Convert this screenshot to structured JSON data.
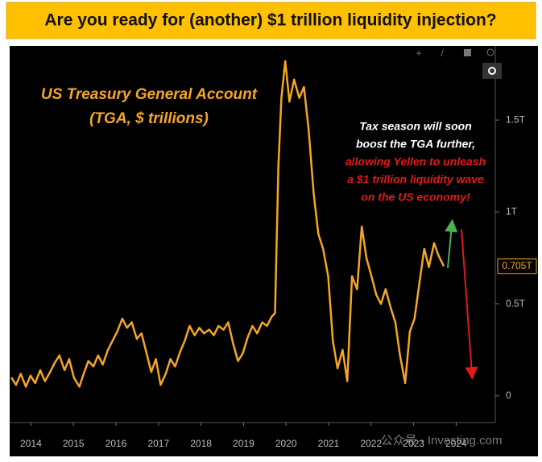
{
  "chart_data": {
    "type": "line",
    "title": "Are you ready for (another) $1 trillion liquidity injection?",
    "annotations": [
      "US Treasury General Account",
      "(TGA, $ trillions)"
    ],
    "note_white": [
      "Tax season will soon",
      "boost the TGA further,"
    ],
    "note_red": [
      "allowing Yellen to unleash",
      "a $1 trillion liquidity wave",
      "on the US economy!"
    ],
    "watermark": "公众号 · Investing.com",
    "color": "#f5a623",
    "x": [
      2014.04,
      2014.15,
      2014.26,
      2014.38,
      2014.49,
      2014.6,
      2014.72,
      2014.83,
      2014.95,
      2015.06,
      2015.17,
      2015.29,
      2015.4,
      2015.51,
      2015.64,
      2015.74,
      2015.85,
      2015.97,
      2016.08,
      2016.19,
      2016.31,
      2016.42,
      2016.53,
      2016.65,
      2016.76,
      2016.87,
      2016.99,
      2017.1,
      2017.21,
      2017.33,
      2017.44,
      2017.55,
      2017.67,
      2017.78,
      2017.89,
      2018.01,
      2018.12,
      2018.23,
      2018.35,
      2018.46,
      2018.57,
      2018.69,
      2018.8,
      2018.91,
      2019.03,
      2019.14,
      2019.26,
      2019.37,
      2019.48,
      2019.6,
      2019.71,
      2019.82,
      2019.94,
      2020.05,
      2020.16,
      2020.24,
      2020.32,
      2020.39,
      2020.48,
      2020.58,
      2020.69,
      2020.81,
      2020.92,
      2021.03,
      2021.15,
      2021.26,
      2021.37,
      2021.49,
      2021.6,
      2021.71,
      2021.83,
      2021.94,
      2022.05,
      2022.17,
      2022.28,
      2022.39,
      2022.51,
      2022.62,
      2022.73,
      2022.84,
      2022.96,
      2023.07,
      2023.18,
      2023.3,
      2023.41,
      2023.52,
      2023.64,
      2023.75,
      2023.86,
      2023.98,
      2024.09,
      2024.21
    ],
    "values": [
      0.1,
      0.06,
      0.12,
      0.05,
      0.11,
      0.07,
      0.14,
      0.08,
      0.13,
      0.18,
      0.22,
      0.14,
      0.2,
      0.1,
      0.05,
      0.12,
      0.19,
      0.16,
      0.22,
      0.17,
      0.25,
      0.3,
      0.35,
      0.42,
      0.37,
      0.4,
      0.31,
      0.34,
      0.24,
      0.13,
      0.2,
      0.06,
      0.12,
      0.2,
      0.16,
      0.24,
      0.3,
      0.38,
      0.33,
      0.37,
      0.34,
      0.36,
      0.33,
      0.38,
      0.36,
      0.4,
      0.28,
      0.19,
      0.23,
      0.32,
      0.38,
      0.34,
      0.4,
      0.38,
      0.43,
      0.45,
      1.25,
      1.62,
      1.82,
      1.6,
      1.72,
      1.62,
      1.68,
      1.45,
      1.1,
      0.88,
      0.8,
      0.65,
      0.3,
      0.15,
      0.25,
      0.08,
      0.65,
      0.58,
      0.92,
      0.75,
      0.65,
      0.55,
      0.5,
      0.58,
      0.48,
      0.4,
      0.22,
      0.07,
      0.35,
      0.42,
      0.62,
      0.8,
      0.7,
      0.83,
      0.76,
      0.705
    ],
    "current_value": 0.705,
    "current_value_label": "0.705T",
    "xlim": [
      2014.0,
      2025.42
    ],
    "xticks": [
      {
        "value": 2014.5,
        "label": "2014"
      },
      {
        "value": 2015.5,
        "label": "2015"
      },
      {
        "value": 2016.5,
        "label": "2016"
      },
      {
        "value": 2017.5,
        "label": "2017"
      },
      {
        "value": 2018.5,
        "label": "2018"
      },
      {
        "value": 2019.5,
        "label": "2019"
      },
      {
        "value": 2020.5,
        "label": "2020"
      },
      {
        "value": 2021.5,
        "label": "2021"
      },
      {
        "value": 2022.5,
        "label": "2022"
      },
      {
        "value": 2023.5,
        "label": "2023"
      },
      {
        "value": 2024.5,
        "label": "2024"
      }
    ],
    "ylim": [
      -0.145,
      1.89
    ],
    "yticks": [
      0,
      {
        "value": 0.5,
        "label": "0.5T"
      },
      {
        "value": 1,
        "label": "1T"
      },
      {
        "value": 1.5,
        "label": "1.5T"
      }
    ]
  }
}
